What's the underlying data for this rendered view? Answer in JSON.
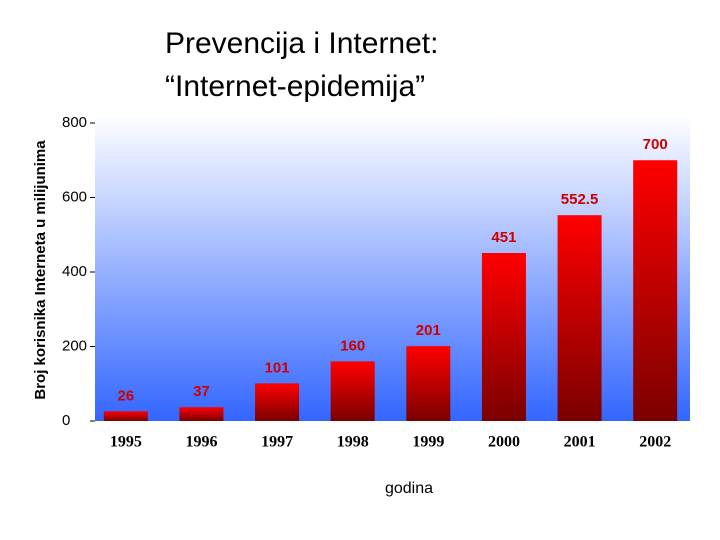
{
  "chart_data": {
    "type": "bar",
    "title": [
      "Prevencija i Internet:",
      "“Internet-epidemija”"
    ],
    "y_label": "Broj korisnika Interneta u milijunima",
    "x_label": "godina",
    "categories": [
      "1995",
      "1996",
      "1997",
      "1998",
      "1999",
      "2000",
      "2001",
      "2002"
    ],
    "values": [
      26,
      37,
      101,
      160,
      201,
      451,
      552.5,
      700
    ],
    "color": "#ff0000",
    "label_color": "#cc0000",
    "ylim": [
      0,
      800
    ],
    "yticks": [
      0,
      200,
      400,
      600,
      800
    ]
  }
}
